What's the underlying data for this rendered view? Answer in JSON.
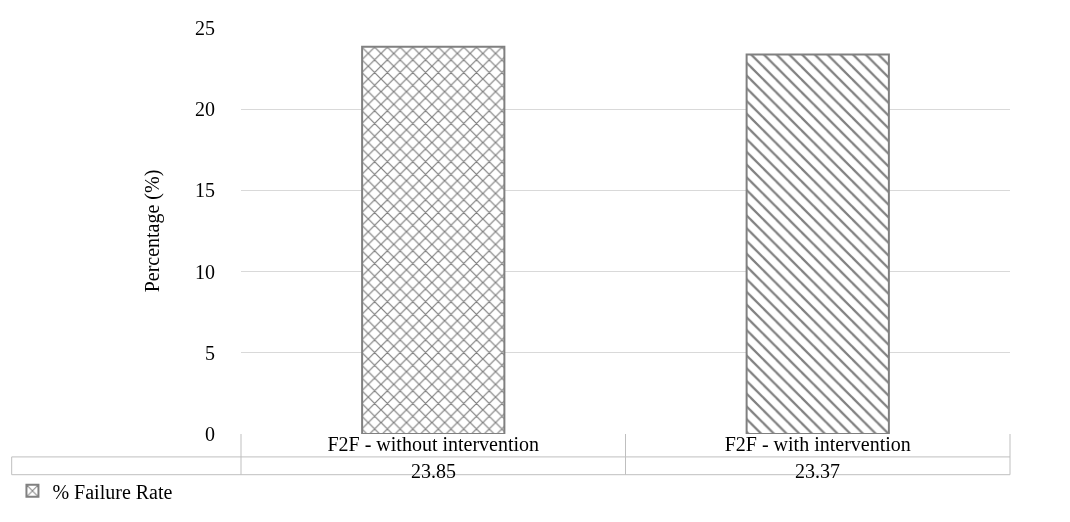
{
  "chart_data": {
    "type": "bar",
    "ylabel": "Percentage (%)",
    "categories": [
      "F2F - without intervention",
      "F2F - with intervention"
    ],
    "series": [
      {
        "name": "% Failure Rate",
        "color": "#808080",
        "values": [
          23.85,
          23.37
        ]
      }
    ],
    "ylim": [
      0,
      25
    ],
    "yticks": [
      0,
      5,
      10,
      15,
      20,
      25
    ],
    "grid": "y",
    "legend": "bottom left",
    "data_labels": true
  }
}
